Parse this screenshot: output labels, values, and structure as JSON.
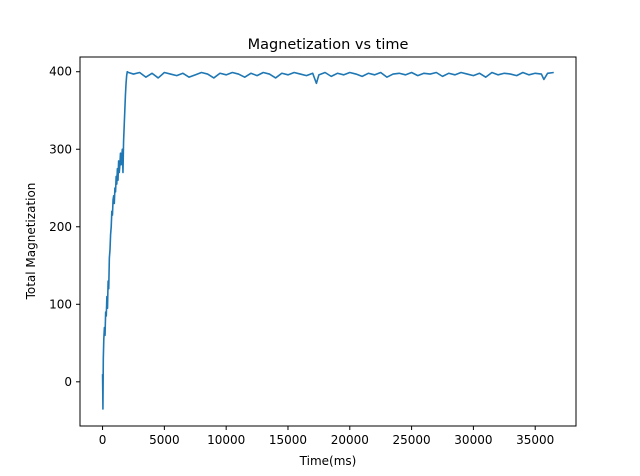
{
  "chart_data": {
    "type": "line",
    "title": "Magnetization vs time",
    "xlabel": "Time(ms)",
    "ylabel": "Total Magnetization",
    "xlim": [
      -1825,
      38300
    ],
    "ylim": [
      -57,
      419
    ],
    "xticks": [
      0,
      5000,
      10000,
      15000,
      20000,
      25000,
      30000,
      35000
    ],
    "yticks": [
      0,
      100,
      200,
      300,
      400
    ],
    "grid": false,
    "legend": "none",
    "series": [
      {
        "color": "#1f77b4",
        "x": [
          0,
          30,
          60,
          100,
          150,
          200,
          250,
          300,
          350,
          400,
          450,
          500,
          550,
          600,
          650,
          700,
          750,
          800,
          850,
          900,
          950,
          1000,
          1050,
          1100,
          1150,
          1200,
          1250,
          1300,
          1350,
          1400,
          1450,
          1500,
          1550,
          1600,
          1650,
          1700,
          1750,
          1800,
          1850,
          1900,
          1950,
          2000,
          2100,
          2500,
          3000,
          3500,
          4000,
          4500,
          5000,
          5500,
          6000,
          6500,
          7000,
          7500,
          8000,
          8500,
          9000,
          9500,
          10000,
          10500,
          11000,
          11500,
          12000,
          12500,
          13000,
          13500,
          14000,
          14500,
          15000,
          15500,
          16000,
          16500,
          17000,
          17300,
          17500,
          18000,
          18500,
          19000,
          19500,
          20000,
          20500,
          21000,
          21500,
          22000,
          22500,
          23000,
          23500,
          24000,
          24500,
          25000,
          25500,
          26000,
          26500,
          27000,
          27500,
          28000,
          28500,
          29000,
          29500,
          30000,
          30500,
          31000,
          31500,
          32000,
          32500,
          33000,
          33500,
          34000,
          34500,
          35000,
          35500,
          35700,
          36000,
          36500
        ],
        "values": [
          10,
          -35,
          30,
          55,
          70,
          60,
          90,
          85,
          110,
          95,
          130,
          120,
          160,
          170,
          190,
          200,
          220,
          215,
          235,
          240,
          230,
          250,
          245,
          265,
          255,
          275,
          260,
          285,
          270,
          280,
          295,
          280,
          290,
          300,
          270,
          310,
          330,
          350,
          370,
          385,
          395,
          400,
          399,
          397,
          399,
          393,
          398,
          392,
          399,
          397,
          395,
          398,
          393,
          396,
          399,
          397,
          392,
          398,
          396,
          399,
          397,
          393,
          398,
          395,
          399,
          397,
          392,
          398,
          396,
          399,
          397,
          395,
          398,
          385,
          396,
          399,
          394,
          398,
          396,
          399,
          397,
          394,
          398,
          396,
          399,
          393,
          397,
          398,
          396,
          399,
          395,
          398,
          397,
          399,
          394,
          398,
          396,
          399,
          397,
          395,
          398,
          393,
          399,
          396,
          398,
          397,
          395,
          399,
          396,
          398,
          397,
          390,
          398,
          399
        ]
      }
    ]
  }
}
